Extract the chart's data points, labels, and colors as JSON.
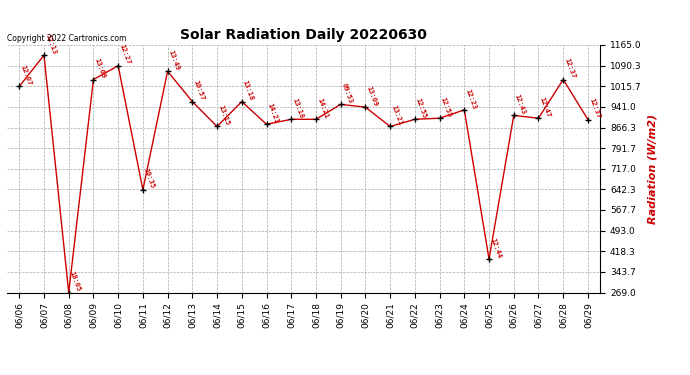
{
  "title": "Solar Radiation Daily 20220630",
  "ylabel": "Radiation (W/m2)",
  "copyright": "Copyright 2022 Cartronics.com",
  "dates": [
    "06/06",
    "06/07",
    "06/08",
    "06/09",
    "06/10",
    "06/11",
    "06/12",
    "06/13",
    "06/14",
    "06/15",
    "06/16",
    "06/17",
    "06/18",
    "06/19",
    "06/20",
    "06/21",
    "06/22",
    "06/23",
    "06/24",
    "06/25",
    "06/26",
    "06/27",
    "06/28",
    "06/29"
  ],
  "values": [
    1015.0,
    1128.0,
    269.0,
    1040.0,
    1090.0,
    641.0,
    1070.0,
    960.0,
    870.0,
    960.0,
    878.0,
    896.0,
    896.0,
    950.0,
    940.0,
    870.0,
    896.0,
    900.0,
    930.0,
    390.0,
    910.0,
    900.0,
    1040.0,
    895.0
  ],
  "annotations": [
    "12:07",
    "12:13",
    "18:05",
    "13:09",
    "12:27",
    "10:35",
    "13:49",
    "10:57",
    "13:15",
    "13:18",
    "14:21",
    "13:18",
    "14:21",
    "09:53",
    "13:09",
    "13:21",
    "12:55",
    "12:55",
    "12:23",
    "12:44",
    "12:43",
    "12:47",
    "12:37",
    "12:37"
  ],
  "ylim": [
    269.0,
    1165.0
  ],
  "yticks": [
    269.0,
    343.7,
    418.3,
    493.0,
    567.7,
    642.3,
    717.0,
    791.7,
    866.3,
    941.0,
    1015.7,
    1090.3,
    1165.0
  ],
  "line_color": "#cc0000",
  "marker_color": "#000000",
  "annotation_color": "#cc0000",
  "title_color": "#000000",
  "ylabel_color": "#cc0000",
  "background_color": "#ffffff",
  "grid_color": "#aaaaaa"
}
